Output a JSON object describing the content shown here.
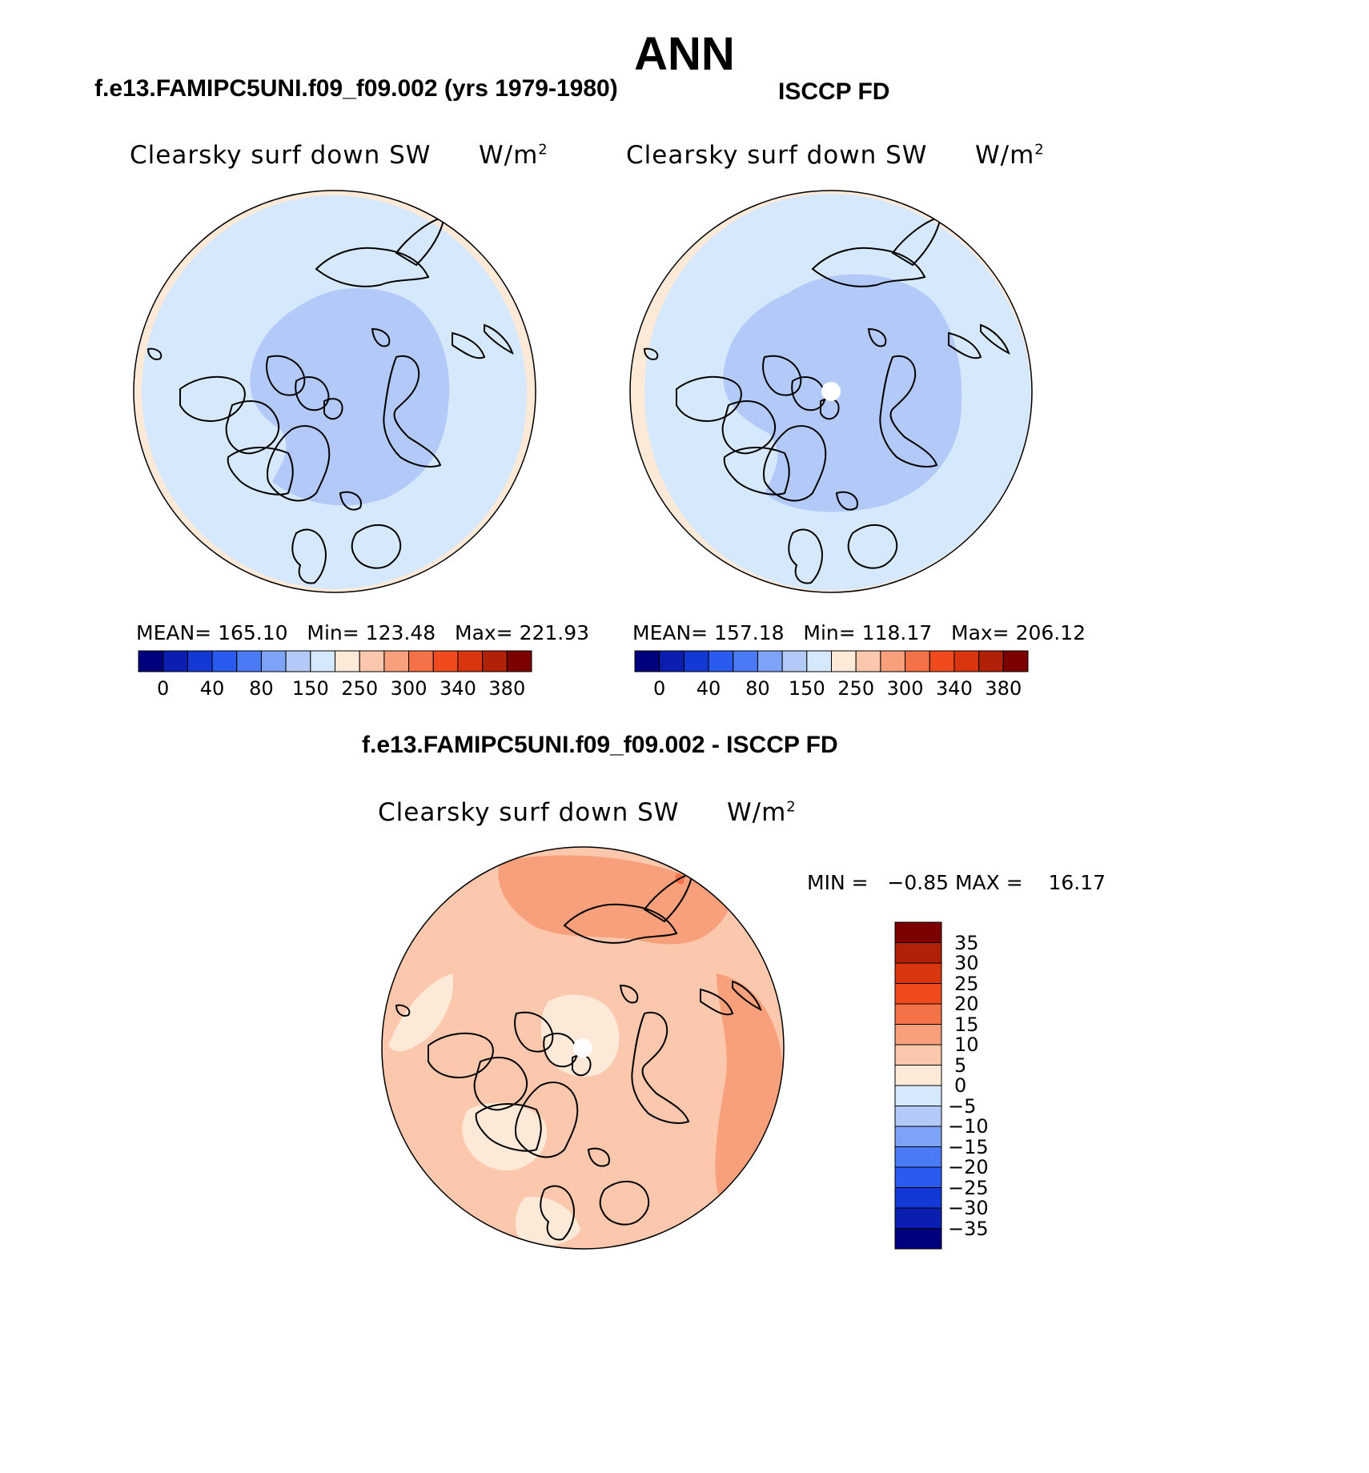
{
  "main_title": "ANN",
  "panels": [
    {
      "subtitle": "f.e13.FAMIPC5UNI.f09_f09.002 (yrs 1979-1980)",
      "variable": "Clearsky surf down SW",
      "units_base": "W/m",
      "units_sup": "2",
      "mean_label": "MEAN=",
      "mean_value": "165.10",
      "min_label": "Min=",
      "min_value": "123.48",
      "max_label": "Max=",
      "max_value": "221.93",
      "pole_hole": false
    },
    {
      "subtitle": "ISCCP FD",
      "variable": "Clearsky surf down SW",
      "units_base": "W/m",
      "units_sup": "2",
      "mean_label": "MEAN=",
      "mean_value": "157.18",
      "min_label": "Min=",
      "min_value": "118.17",
      "max_label": "Max=",
      "max_value": "206.12",
      "pole_hole": true
    }
  ],
  "diff": {
    "subtitle": "f.e13.FAMIPC5UNI.f09_f09.002 - ISCCP FD",
    "variable": "Clearsky surf down SW",
    "units_base": "W/m",
    "units_sup": "2",
    "min_label": "MIN =",
    "min_value": "−0.85",
    "max_label": "MAX =",
    "max_value": "16.17"
  },
  "chart_data": [
    {
      "type": "heatmap",
      "title": "f.e13.FAMIPC5UNI.f09_f09.002 (yrs 1979-1980)",
      "variable": "Clearsky surf down SW",
      "units": "W/m2",
      "projection": "north polar stereographic",
      "stats": {
        "mean": 165.1,
        "min": 123.48,
        "max": 221.93
      },
      "colorbar_ticks": [
        "0",
        "40",
        "80",
        "150",
        "250",
        "300",
        "340",
        "380"
      ],
      "dominant_levels": [
        "150-200 (outer)",
        "100-150 (central Arctic)",
        "200-250 (edges)"
      ]
    },
    {
      "type": "heatmap",
      "title": "ISCCP FD",
      "variable": "Clearsky surf down SW",
      "units": "W/m2",
      "projection": "north polar stereographic",
      "stats": {
        "mean": 157.18,
        "min": 118.17,
        "max": 206.12
      },
      "colorbar_ticks": [
        "0",
        "40",
        "80",
        "150",
        "250",
        "300",
        "340",
        "380"
      ],
      "dominant_levels": [
        "150-200 (outer)",
        "100-150 (central Arctic)",
        "200-250 (edges)"
      ]
    },
    {
      "type": "heatmap",
      "title": "f.e13.FAMIPC5UNI.f09_f09.002 - ISCCP FD",
      "variable": "Clearsky surf down SW",
      "units": "W/m2",
      "projection": "north polar stereographic",
      "stats": {
        "min": -0.85,
        "max": 16.17
      },
      "colorbar_ticks": [
        "35",
        "30",
        "25",
        "20",
        "15",
        "10",
        "5",
        "0",
        "−5",
        "−10",
        "−15",
        "−20",
        "−25",
        "−30",
        "−35"
      ],
      "dominant_levels": [
        "5-10 (most of domain)",
        "10-15 (Pacific/Atlantic margins)",
        "0-5 (pole, Greenland)"
      ]
    }
  ],
  "colors": {
    "abs_scale": [
      "#00007f",
      "#0a1fb0",
      "#1438d4",
      "#2a5af0",
      "#4a7af5",
      "#7da3f6",
      "#b3c9f7",
      "#d6e8fb",
      "#fde9d8",
      "#fbc8ae",
      "#f8a07b",
      "#f57148",
      "#f24a1f",
      "#d9360f",
      "#b02108",
      "#7d0000"
    ],
    "diff_scale": [
      "#7d0000",
      "#b02108",
      "#d9360f",
      "#f24a1f",
      "#f57148",
      "#f8a07b",
      "#fbc8ae",
      "#fde9d8",
      "#d6e8fb",
      "#b3c9f7",
      "#7da3f6",
      "#4a7af5",
      "#2a5af0",
      "#1438d4",
      "#0a1fb0",
      "#00007f"
    ]
  }
}
